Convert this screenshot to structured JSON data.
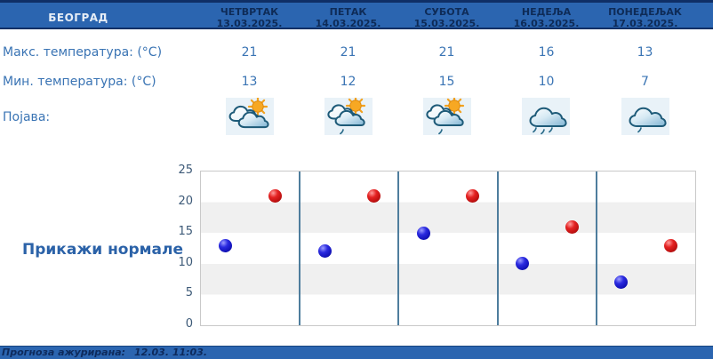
{
  "header": {
    "city": "БЕОГРАД",
    "days": [
      {
        "name": "ЧЕТВРТАК",
        "date": "13.03.2025."
      },
      {
        "name": "ПЕТАК",
        "date": "14.03.2025."
      },
      {
        "name": "СУБОТА",
        "date": "15.03.2025."
      },
      {
        "name": "НЕДЕЉА",
        "date": "16.03.2025."
      },
      {
        "name": "ПОНЕДЕЉАК",
        "date": "17.03.2025."
      }
    ]
  },
  "rows": {
    "max_label": "Макс. температура: (°С)",
    "max_values": [
      "21",
      "21",
      "21",
      "16",
      "13"
    ],
    "min_label": "Мин. температура: (°С)",
    "min_values": [
      "13",
      "12",
      "15",
      "10",
      "7"
    ],
    "pojava_label": "Појава:",
    "icons": [
      {
        "type": "sun-clouds",
        "name": "partly-cloudy-icon"
      },
      {
        "type": "sun-clouds-drizzle",
        "name": "partly-cloudy-light-rain-icon"
      },
      {
        "type": "sun-clouds-drizzle",
        "name": "partly-cloudy-light-rain-icon"
      },
      {
        "type": "cloud-rain",
        "name": "cloudy-rain-icon"
      },
      {
        "type": "cloud-drizzle",
        "name": "cloudy-light-rain-icon"
      }
    ]
  },
  "normals_button_label": "Прикажи нормале",
  "chart_data": {
    "type": "scatter",
    "categories": [
      "ЧЕТВРТАК",
      "ПЕТАК",
      "СУБОТА",
      "НЕДЕЉА",
      "ПОНЕДЕЉАК"
    ],
    "series": [
      {
        "name": "Макс. температура (°С)",
        "color": "#c41414",
        "values": [
          21,
          21,
          21,
          16,
          13
        ]
      },
      {
        "name": "Мин. температура (°С)",
        "color": "#1414b8",
        "values": [
          13,
          12,
          15,
          10,
          7
        ]
      }
    ],
    "ylim": [
      0,
      25
    ],
    "yticks": [
      0,
      5,
      10,
      15,
      20,
      25
    ],
    "grid": "horizontal-stripes",
    "stripe_colors": [
      "#ffffff",
      "#f0f0f0"
    ],
    "separator_color": "#4e7d9d",
    "legend": "none"
  },
  "footer": {
    "label": "Прогноза ажурирана:",
    "value": "12.03. 11:03."
  }
}
